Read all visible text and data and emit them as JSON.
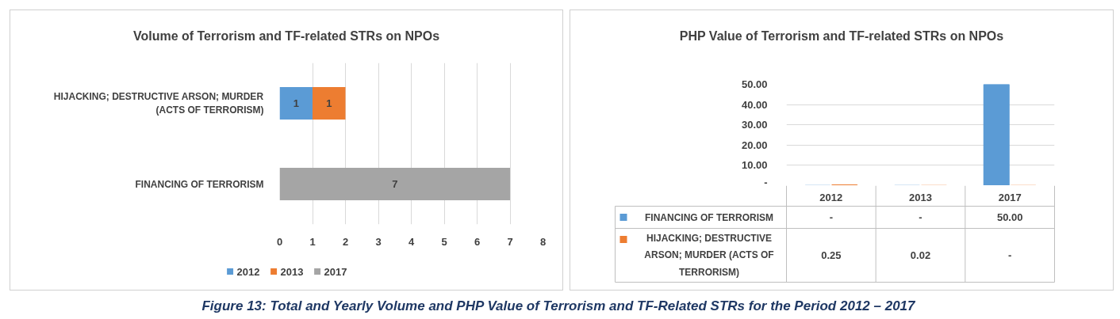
{
  "chart_data": [
    {
      "type": "bar",
      "title": "Volume of Terrorism and TF-related STRs on NPOs",
      "orientation": "horizontal",
      "stacked": true,
      "categories": [
        "HIJACKING; DESTRUCTIVE ARSON; MURDER (ACTS OF TERRORISM)",
        "FINANCING OF TERRORISM"
      ],
      "series": [
        {
          "name": "2012",
          "color": "#5b9bd5",
          "values": [
            1,
            null
          ]
        },
        {
          "name": "2013",
          "color": "#ed7d31",
          "values": [
            1,
            null
          ]
        },
        {
          "name": "2017",
          "color": "#a5a5a5",
          "values": [
            null,
            7
          ]
        }
      ],
      "xlim": [
        0,
        8
      ],
      "xticks": [
        0,
        1,
        2,
        3,
        4,
        5,
        6,
        7,
        8
      ],
      "grid": "x",
      "legend": "bottom",
      "data_labels": true
    },
    {
      "type": "bar",
      "title": "PHP Value of Terrorism and TF-related STRs on NPOs",
      "categories": [
        "2012",
        "2013",
        "2017"
      ],
      "series": [
        {
          "name": "FINANCING OF TERRORISM",
          "color": "#5b9bd5",
          "values": [
            0,
            0,
            50
          ],
          "value_labels": [
            "-",
            "-",
            "50.00"
          ]
        },
        {
          "name": "HIJACKING; DESTRUCTIVE ARSON; MURDER (ACTS OF TERRORISM)",
          "color": "#ed7d31",
          "values": [
            0.25,
            0.02,
            0
          ],
          "value_labels": [
            "0.25",
            "0.02",
            "-"
          ]
        }
      ],
      "ylim": [
        0,
        50
      ],
      "yticks": [
        {
          "value": 0,
          "label": "-"
        },
        {
          "value": 10,
          "label": "10.00"
        },
        {
          "value": 20,
          "label": "20.00"
        },
        {
          "value": 30,
          "label": "30.00"
        },
        {
          "value": 40,
          "label": "40.00"
        },
        {
          "value": 50,
          "label": "50.00"
        }
      ],
      "grid": "y",
      "legend": "bottom",
      "annotations": [
        "Figure 13: Total and Yearly Volume and PHP Value of Terrorism and TF-Related STRs for the Period 2012 – 2017"
      ]
    }
  ]
}
